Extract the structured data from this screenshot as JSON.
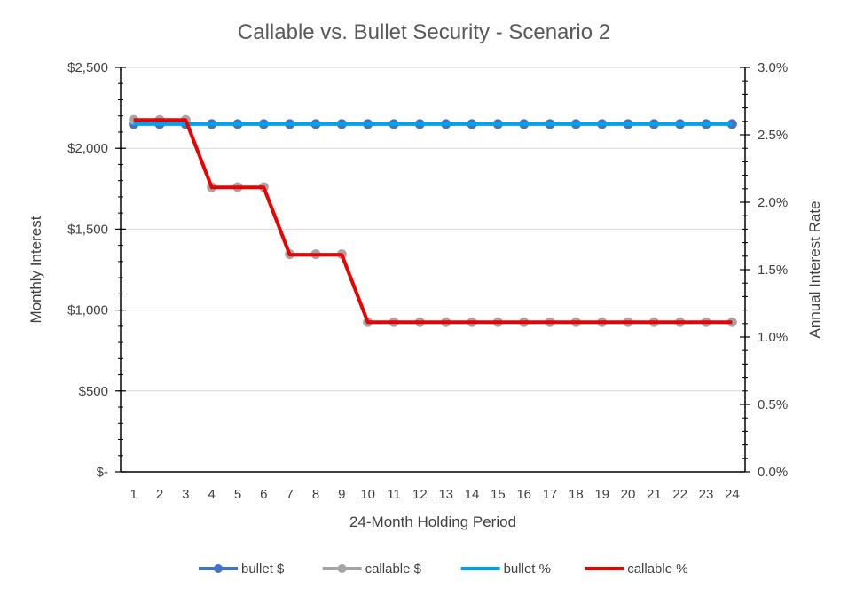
{
  "chart_data": {
    "type": "line",
    "title": "Callable vs. Bullet Security - Scenario 2",
    "xlabel": "24-Month Holding Period",
    "ylabel_left": "Monthly Interest",
    "ylabel_right": "Annual Interest Rate",
    "categories": [
      "1",
      "2",
      "3",
      "4",
      "5",
      "6",
      "7",
      "8",
      "9",
      "10",
      "11",
      "12",
      "13",
      "14",
      "15",
      "16",
      "17",
      "18",
      "19",
      "20",
      "21",
      "22",
      "23",
      "24"
    ],
    "y_left": {
      "lim": [
        0,
        2500
      ],
      "ticks": [
        0,
        500,
        1000,
        1500,
        2000,
        2500
      ],
      "tick_labels": [
        "$-",
        "$500",
        "$1,000",
        "$1,500",
        "$2,000",
        "$2,500"
      ]
    },
    "y_right": {
      "lim": [
        0,
        0.03
      ],
      "ticks": [
        0,
        0.005,
        0.01,
        0.015,
        0.02,
        0.025,
        0.03
      ],
      "tick_labels": [
        "0.0%",
        "0.5%",
        "1.0%",
        "1.5%",
        "2.0%",
        "2.5%",
        "3.0%"
      ]
    },
    "grid": true,
    "legend_position": "bottom",
    "series": [
      {
        "name": "bullet $",
        "axis": "left",
        "color": "#4472C4",
        "marker": true,
        "values": [
          2150,
          2150,
          2150,
          2150,
          2150,
          2150,
          2150,
          2150,
          2150,
          2150,
          2150,
          2150,
          2150,
          2150,
          2150,
          2150,
          2150,
          2150,
          2150,
          2150,
          2150,
          2150,
          2150,
          2150
        ]
      },
      {
        "name": "callable $",
        "axis": "left",
        "color": "#A5A5A5",
        "marker": true,
        "values": [
          2175,
          2175,
          2175,
          1760,
          1760,
          1760,
          1345,
          1345,
          1345,
          925,
          925,
          925,
          925,
          925,
          925,
          925,
          925,
          925,
          925,
          925,
          925,
          925,
          925,
          925
        ]
      },
      {
        "name": "bullet %",
        "axis": "right",
        "color": "#00A2E8",
        "marker": false,
        "values": [
          0.0258,
          0.0258,
          0.0258,
          0.0258,
          0.0258,
          0.0258,
          0.0258,
          0.0258,
          0.0258,
          0.0258,
          0.0258,
          0.0258,
          0.0258,
          0.0258,
          0.0258,
          0.0258,
          0.0258,
          0.0258,
          0.0258,
          0.0258,
          0.0258,
          0.0258,
          0.0258,
          0.0258
        ]
      },
      {
        "name": "callable %",
        "axis": "right",
        "color": "#EE0000",
        "marker": false,
        "values": [
          0.0261,
          0.0261,
          0.0261,
          0.0211,
          0.0211,
          0.0211,
          0.0161,
          0.0161,
          0.0161,
          0.0111,
          0.0111,
          0.0111,
          0.0111,
          0.0111,
          0.0111,
          0.0111,
          0.0111,
          0.0111,
          0.0111,
          0.0111,
          0.0111,
          0.0111,
          0.0111,
          0.0111
        ]
      }
    ]
  }
}
